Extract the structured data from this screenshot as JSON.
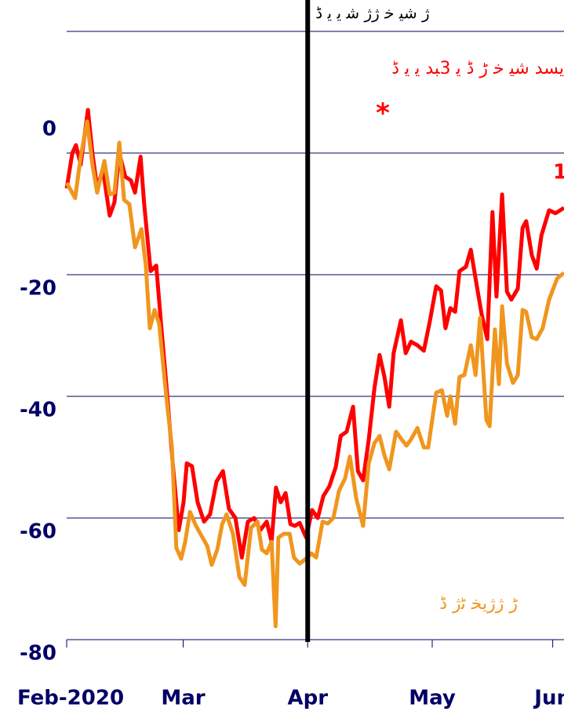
{
  "chart_data": {
    "type": "line",
    "title": "ژ ﺷﯿ ﺧ ژژ ﺷ ﯾ ﯾ ڈ",
    "annotations": [
      {
        "text": "ﯾﺴﺪ ﺷﯿ ﺧ ڑ  ڈ  ﯾ  3ﺒﺪ ﯾ ﯾ ڈ",
        "color": "#ff0000"
      },
      {
        "text": "*",
        "color": "#ff0000"
      },
      {
        "text": "1",
        "color": "#ff0000"
      },
      {
        "text": "ڑ ژژﯾﺨ  ﭨژ ڈ",
        "color": "#f0961e"
      }
    ],
    "vline": 60,
    "xlim": [
      0,
      124
    ],
    "xticks": [
      {
        "value": 0,
        "label": "Feb-2020"
      },
      {
        "value": 29,
        "label": "Mar"
      },
      {
        "value": 60,
        "label": "Apr"
      },
      {
        "value": 91,
        "label": "May"
      },
      {
        "value": 121,
        "label": "Jun"
      }
    ],
    "ylim": [
      -80,
      20
    ],
    "yticks": [
      -80,
      -60,
      -40,
      -20,
      0
    ],
    "grid": true,
    "series": [
      {
        "color": "#ff0000",
        "x": [
          0,
          1.4,
          2.3,
          3.5,
          5.3,
          6.4,
          7.6,
          9,
          10.7,
          11.9,
          13.1,
          14.6,
          16,
          17,
          18.4,
          19.3,
          20.9,
          22.3,
          23.6,
          24.8,
          26.4,
          27.9,
          29.1,
          29.9,
          31.2,
          32.6,
          34.2,
          35.7,
          37.3,
          38.9,
          40.4,
          42,
          43.6,
          45.1,
          46.7,
          48.2,
          49.8,
          51,
          52.1,
          53.3,
          54.5,
          55.7,
          56.8,
          58,
          59.6,
          61.1,
          62.5,
          63.9,
          65.4,
          67,
          68.2,
          69.7,
          71.3,
          72.5,
          73.8,
          75.2,
          76.6,
          77.9,
          79.1,
          80.3,
          81.4,
          83.2,
          84.4,
          85.7,
          87.3,
          88.9,
          90.4,
          92,
          93.2,
          94.3,
          95.5,
          96.7,
          97.8,
          99.4,
          100.6,
          102.1,
          103.3,
          104.7,
          106,
          107,
          108.4,
          109.6,
          110.7,
          112.3,
          113.5,
          114.4,
          115.8,
          117,
          118.2,
          120.1,
          121.7,
          123.8
        ],
        "values": [
          -5.8,
          0,
          1.3,
          -1.9,
          7.1,
          0,
          -5.8,
          -2.6,
          -10.3,
          -8.1,
          0,
          -3.9,
          -4.5,
          -6.5,
          -0.6,
          -8.4,
          -19.4,
          -18.5,
          -29,
          -38,
          -51,
          -62,
          -57.4,
          -51,
          -51.5,
          -57.4,
          -60.6,
          -59.4,
          -54,
          -52.3,
          -58.5,
          -60,
          -66.5,
          -60.6,
          -60,
          -62,
          -60.6,
          -63.9,
          -55,
          -57.4,
          -55.9,
          -61,
          -61.3,
          -60.8,
          -63.2,
          -58.7,
          -60,
          -56.4,
          -54.8,
          -51.6,
          -46.5,
          -45.8,
          -41.7,
          -52.3,
          -53.8,
          -47.1,
          -38.7,
          -33.2,
          -36.8,
          -41.7,
          -32.9,
          -27.5,
          -32.9,
          -31,
          -31.6,
          -32.5,
          -27.7,
          -21.9,
          -22.6,
          -28.8,
          -25.5,
          -26.1,
          -19.4,
          -18.7,
          -15.9,
          -21.9,
          -26.5,
          -30.6,
          -9.7,
          -23.6,
          -6.8,
          -22.8,
          -24.1,
          -22.3,
          -12.3,
          -11.2,
          -16.8,
          -19,
          -13.5,
          -9.4,
          -9.9,
          -9
        ]
      },
      {
        "color": "#f0961e",
        "x": [
          0,
          2.1,
          3.5,
          5.1,
          6.4,
          7.6,
          9.4,
          10.7,
          11.9,
          13.1,
          14.3,
          15.6,
          17,
          18.6,
          19.7,
          20.7,
          21.9,
          23,
          24.8,
          26.2,
          27.3,
          28.5,
          29.5,
          30.7,
          32.2,
          33.8,
          35,
          36.1,
          37.5,
          38.7,
          39.8,
          41.4,
          43,
          44.3,
          45.9,
          47.5,
          48.6,
          49.8,
          51,
          52,
          52.7,
          54.1,
          55.5,
          56.6,
          58,
          59.6,
          60.9,
          62.1,
          63.7,
          65,
          66.4,
          67.8,
          69.3,
          70.5,
          72.1,
          73.8,
          75.2,
          76.6,
          77.9,
          79.1,
          80.3,
          82,
          83.4,
          84.6,
          85.7,
          87.3,
          88.9,
          90,
          92,
          93.4,
          94.7,
          95.5,
          96.7,
          97.8,
          99,
          100.6,
          101.8,
          102.9,
          104.5,
          105.3,
          106.6,
          107.6,
          108.4,
          109.6,
          111.1,
          112.3,
          113.5,
          114.4,
          115.8,
          117,
          118.5,
          120.1,
          122.1,
          123.8
        ],
        "values": [
          -4.9,
          -7.4,
          -0.6,
          5.2,
          -1.9,
          -6.5,
          -1.3,
          -6.8,
          -6.5,
          1.7,
          -7.7,
          -8.4,
          -15.5,
          -12.5,
          -18.5,
          -28.8,
          -25.8,
          -28,
          -40,
          -48.4,
          -64.9,
          -66.7,
          -63.9,
          -59,
          -61.3,
          -63.2,
          -64.6,
          -67.7,
          -65.2,
          -61,
          -59.4,
          -62.6,
          -69.7,
          -71,
          -61.6,
          -60.6,
          -65.2,
          -65.8,
          -63.9,
          -77.8,
          -63.2,
          -62.6,
          -62.6,
          -66.5,
          -67.5,
          -66.7,
          -65.8,
          -66.5,
          -60.6,
          -60.9,
          -60,
          -55.5,
          -53.5,
          -49.9,
          -56.8,
          -61.3,
          -51,
          -47.7,
          -46.5,
          -49.7,
          -52,
          -45.8,
          -47.1,
          -48.1,
          -47.1,
          -45.2,
          -48.4,
          -48.4,
          -39.4,
          -39,
          -43.2,
          -40,
          -44.5,
          -36.8,
          -36.5,
          -31.6,
          -36.5,
          -27.1,
          -43.9,
          -44.9,
          -29,
          -38,
          -25.2,
          -34.6,
          -37.8,
          -36.5,
          -25.8,
          -26.1,
          -30.3,
          -30.6,
          -28.8,
          -24.1,
          -20.6,
          -19.7
        ]
      }
    ]
  }
}
